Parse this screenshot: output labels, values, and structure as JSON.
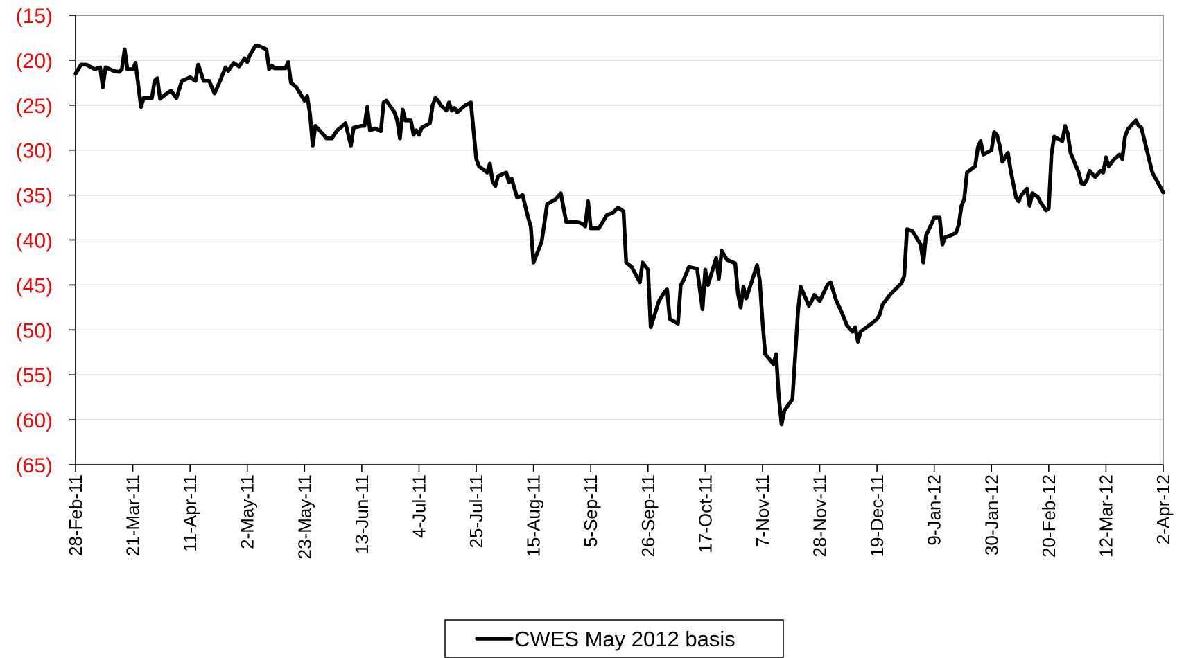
{
  "chart_data": {
    "type": "line",
    "title": "",
    "xlabel": "",
    "ylabel": "",
    "ylim": [
      -65,
      -15
    ],
    "y_ticks": [
      -15,
      -20,
      -25,
      -30,
      -35,
      -40,
      -45,
      -50,
      -55,
      -60,
      -65
    ],
    "y_tick_labels": [
      "(15)",
      "(20)",
      "(25)",
      "(30)",
      "(35)",
      "(40)",
      "(45)",
      "(50)",
      "(55)",
      "(60)",
      "(65)"
    ],
    "y_tick_color": "#ff0000",
    "x_tick_labels": [
      "28-Feb-11",
      "21-Mar-11",
      "11-Apr-11",
      "2-May-11",
      "23-May-11",
      "13-Jun-11",
      "4-Jul-11",
      "25-Jul-11",
      "15-Aug-11",
      "5-Sep-11",
      "26-Sep-11",
      "17-Oct-11",
      "7-Nov-11",
      "28-Nov-11",
      "19-Dec-11",
      "9-Jan-12",
      "30-Jan-12",
      "20-Feb-12",
      "12-Mar-12",
      "2-Apr-12"
    ],
    "grid": true,
    "legend_position": "bottom-center",
    "series": [
      {
        "name": "CWES May 2012 basis",
        "color": "#000000",
        "points": [
          [
            "28-Feb-11",
            -21.5
          ],
          [
            "2-Mar-11",
            -20.5
          ],
          [
            "4-Mar-11",
            -20.5
          ],
          [
            "7-Mar-11",
            -21.0
          ],
          [
            "9-Mar-11",
            -20.8
          ],
          [
            "10-Mar-11",
            -23.0
          ],
          [
            "11-Mar-11",
            -20.8
          ],
          [
            "14-Mar-11",
            -21.2
          ],
          [
            "16-Mar-11",
            -21.3
          ],
          [
            "17-Mar-11",
            -21.0
          ],
          [
            "18-Mar-11",
            -18.8
          ],
          [
            "19-Mar-11",
            -21.0
          ],
          [
            "21-Mar-11",
            -21.0
          ],
          [
            "22-Mar-11",
            -20.3
          ],
          [
            "24-Mar-11",
            -25.2
          ],
          [
            "25-Mar-11",
            -24.2
          ],
          [
            "28-Mar-11",
            -24.2
          ],
          [
            "29-Mar-11",
            -22.3
          ],
          [
            "30-Mar-11",
            -22.0
          ],
          [
            "31-Mar-11",
            -24.3
          ],
          [
            "2-Apr-11",
            -23.8
          ],
          [
            "4-Apr-11",
            -23.4
          ],
          [
            "6-Apr-11",
            -24.2
          ],
          [
            "8-Apr-11",
            -22.3
          ],
          [
            "11-Apr-11",
            -21.9
          ],
          [
            "13-Apr-11",
            -22.3
          ],
          [
            "14-Apr-11",
            -20.5
          ],
          [
            "16-Apr-11",
            -22.3
          ],
          [
            "18-Apr-11",
            -22.3
          ],
          [
            "20-Apr-11",
            -23.7
          ],
          [
            "22-Apr-11",
            -22.3
          ],
          [
            "24-Apr-11",
            -20.8
          ],
          [
            "25-Apr-11",
            -21.2
          ],
          [
            "27-Apr-11",
            -20.3
          ],
          [
            "29-Apr-11",
            -20.7
          ],
          [
            "1-May-11",
            -19.8
          ],
          [
            "2-May-11",
            -20.2
          ],
          [
            "3-May-11",
            -19.4
          ],
          [
            "5-May-11",
            -18.4
          ],
          [
            "6-May-11",
            -18.4
          ],
          [
            "9-May-11",
            -18.8
          ],
          [
            "10-May-11",
            -21.0
          ],
          [
            "11-May-11",
            -20.6
          ],
          [
            "12-May-11",
            -20.9
          ],
          [
            "16-May-11",
            -20.9
          ],
          [
            "17-May-11",
            -20.2
          ],
          [
            "18-May-11",
            -22.5
          ],
          [
            "20-May-11",
            -23.0
          ],
          [
            "23-May-11",
            -24.5
          ],
          [
            "24-May-11",
            -24.0
          ],
          [
            "25-May-11",
            -26.0
          ],
          [
            "26-May-11",
            -29.5
          ],
          [
            "27-May-11",
            -27.3
          ],
          [
            "30-May-11",
            -28.3
          ],
          [
            "31-May-11",
            -28.7
          ],
          [
            "2-Jun-11",
            -28.7
          ],
          [
            "4-Jun-11",
            -27.8
          ],
          [
            "6-Jun-11",
            -27.3
          ],
          [
            "7-Jun-11",
            -27.0
          ],
          [
            "9-Jun-11",
            -29.5
          ],
          [
            "10-Jun-11",
            -27.5
          ],
          [
            "13-Jun-11",
            -27.3
          ],
          [
            "14-Jun-11",
            -27.3
          ],
          [
            "15-Jun-11",
            -25.2
          ],
          [
            "16-Jun-11",
            -27.8
          ],
          [
            "18-Jun-11",
            -27.6
          ],
          [
            "20-Jun-11",
            -27.9
          ],
          [
            "21-Jun-11",
            -24.7
          ],
          [
            "22-Jun-11",
            -24.5
          ],
          [
            "25-Jun-11",
            -25.8
          ],
          [
            "26-Jun-11",
            -26.7
          ],
          [
            "27-Jun-11",
            -28.7
          ],
          [
            "28-Jun-11",
            -25.5
          ],
          [
            "29-Jun-11",
            -26.7
          ],
          [
            "1-Jul-11",
            -26.7
          ],
          [
            "2-Jul-11",
            -28.3
          ],
          [
            "3-Jul-11",
            -27.8
          ],
          [
            "4-Jul-11",
            -28.3
          ],
          [
            "5-Jul-11",
            -27.5
          ],
          [
            "8-Jul-11",
            -27.0
          ],
          [
            "9-Jul-11",
            -25.0
          ],
          [
            "10-Jul-11",
            -24.2
          ],
          [
            "11-Jul-11",
            -24.5
          ],
          [
            "12-Jul-11",
            -25.0
          ],
          [
            "14-Jul-11",
            -25.6
          ],
          [
            "15-Jul-11",
            -24.7
          ],
          [
            "16-Jul-11",
            -25.6
          ],
          [
            "17-Jul-11",
            -25.3
          ],
          [
            "18-Jul-11",
            -25.8
          ],
          [
            "21-Jul-11",
            -25.0
          ],
          [
            "23-Jul-11",
            -24.7
          ],
          [
            "24-Jul-11",
            -27.8
          ],
          [
            "25-Jul-11",
            -31.0
          ],
          [
            "26-Jul-11",
            -31.8
          ],
          [
            "29-Jul-11",
            -32.5
          ],
          [
            "30-Jul-11",
            -31.5
          ],
          [
            "31-Jul-11",
            -33.5
          ],
          [
            "1-Aug-11",
            -34.0
          ],
          [
            "2-Aug-11",
            -32.9
          ],
          [
            "5-Aug-11",
            -32.5
          ],
          [
            "6-Aug-11",
            -33.6
          ],
          [
            "7-Aug-11",
            -33.2
          ],
          [
            "9-Aug-11",
            -35.3
          ],
          [
            "11-Aug-11",
            -35.0
          ],
          [
            "13-Aug-11",
            -37.5
          ],
          [
            "14-Aug-11",
            -38.5
          ],
          [
            "15-Aug-11",
            -42.5
          ],
          [
            "18-Aug-11",
            -40.2
          ],
          [
            "20-Aug-11",
            -36.0
          ],
          [
            "23-Aug-11",
            -35.5
          ],
          [
            "25-Aug-11",
            -34.8
          ],
          [
            "27-Aug-11",
            -38.0
          ],
          [
            "31-Aug-11",
            -38.0
          ],
          [
            "2-Sep-11",
            -38.2
          ],
          [
            "3-Sep-11",
            -38.5
          ],
          [
            "4-Sep-11",
            -35.7
          ],
          [
            "5-Sep-11",
            -38.7
          ],
          [
            "8-Sep-11",
            -38.7
          ],
          [
            "11-Sep-11",
            -37.2
          ],
          [
            "13-Sep-11",
            -37.0
          ],
          [
            "15-Sep-11",
            -36.4
          ],
          [
            "17-Sep-11",
            -36.8
          ],
          [
            "18-Sep-11",
            -42.5
          ],
          [
            "20-Sep-11",
            -43.0
          ],
          [
            "23-Sep-11",
            -44.7
          ],
          [
            "24-Sep-11",
            -42.5
          ],
          [
            "26-Sep-11",
            -43.3
          ],
          [
            "27-Sep-11",
            -49.7
          ],
          [
            "30-Sep-11",
            -46.8
          ],
          [
            "2-Oct-11",
            -45.8
          ],
          [
            "3-Oct-11",
            -45.5
          ],
          [
            "4-Oct-11",
            -48.8
          ],
          [
            "7-Oct-11",
            -49.3
          ],
          [
            "8-Oct-11",
            -45.0
          ],
          [
            "9-Oct-11",
            -44.5
          ],
          [
            "11-Oct-11",
            -43.0
          ],
          [
            "14-Oct-11",
            -43.2
          ],
          [
            "16-Oct-11",
            -47.7
          ],
          [
            "17-Oct-11",
            -43.3
          ],
          [
            "18-Oct-11",
            -45.0
          ],
          [
            "21-Oct-11",
            -42.0
          ],
          [
            "22-Oct-11",
            -44.3
          ],
          [
            "23-Oct-11",
            -41.2
          ],
          [
            "25-Oct-11",
            -42.2
          ],
          [
            "28-Oct-11",
            -42.6
          ],
          [
            "29-Oct-11",
            -46.0
          ],
          [
            "30-Oct-11",
            -47.5
          ],
          [
            "31-Oct-11",
            -45.2
          ],
          [
            "1-Nov-11",
            -46.5
          ],
          [
            "5-Nov-11",
            -42.8
          ],
          [
            "6-Nov-11",
            -44.5
          ],
          [
            "7-Nov-11",
            -49.0
          ],
          [
            "8-Nov-11",
            -52.7
          ],
          [
            "11-Nov-11",
            -53.8
          ],
          [
            "12-Nov-11",
            -52.7
          ],
          [
            "13-Nov-11",
            -57.5
          ],
          [
            "14-Nov-11",
            -60.5
          ],
          [
            "15-Nov-11",
            -59.0
          ],
          [
            "18-Nov-11",
            -57.7
          ],
          [
            "20-Nov-11",
            -48.0
          ],
          [
            "21-Nov-11",
            -45.2
          ],
          [
            "24-Nov-11",
            -47.3
          ],
          [
            "25-Nov-11",
            -46.8
          ],
          [
            "26-Nov-11",
            -46.1
          ],
          [
            "28-Nov-11",
            -46.8
          ],
          [
            "30-Nov-11",
            -45.5
          ],
          [
            "1-Dec-11",
            -44.9
          ],
          [
            "2-Dec-11",
            -44.7
          ],
          [
            "4-Dec-11",
            -46.7
          ],
          [
            "6-Dec-11",
            -48.0
          ],
          [
            "8-Dec-11",
            -49.5
          ],
          [
            "10-Dec-11",
            -50.2
          ],
          [
            "11-Dec-11",
            -49.7
          ],
          [
            "12-Dec-11",
            -51.3
          ],
          [
            "13-Dec-11",
            -50.2
          ],
          [
            "17-Dec-11",
            -49.3
          ],
          [
            "19-Dec-11",
            -48.8
          ],
          [
            "20-Dec-11",
            -48.3
          ],
          [
            "21-Dec-11",
            -47.2
          ],
          [
            "24-Dec-11",
            -46.0
          ],
          [
            "28-Dec-11",
            -44.8
          ],
          [
            "29-Dec-11",
            -44.0
          ],
          [
            "30-Dec-11",
            -38.8
          ],
          [
            "1-Jan-12",
            -39.0
          ],
          [
            "4-Jan-12",
            -40.5
          ],
          [
            "5-Jan-12",
            -42.5
          ],
          [
            "6-Jan-12",
            -39.5
          ],
          [
            "8-Jan-12",
            -38.2
          ],
          [
            "9-Jan-12",
            -37.5
          ],
          [
            "11-Jan-12",
            -37.5
          ],
          [
            "12-Jan-12",
            -40.5
          ],
          [
            "13-Jan-12",
            -39.7
          ],
          [
            "15-Jan-12",
            -39.5
          ],
          [
            "17-Jan-12",
            -39.2
          ],
          [
            "18-Jan-12",
            -38.3
          ],
          [
            "19-Jan-12",
            -36.2
          ],
          [
            "20-Jan-12",
            -35.5
          ],
          [
            "21-Jan-12",
            -32.5
          ],
          [
            "24-Jan-12",
            -31.8
          ],
          [
            "25-Jan-12",
            -29.7
          ],
          [
            "26-Jan-12",
            -29.0
          ],
          [
            "27-Jan-12",
            -30.5
          ],
          [
            "30-Jan-12",
            -30.0
          ],
          [
            "31-Jan-12",
            -28.0
          ],
          [
            "1-Feb-12",
            -28.3
          ],
          [
            "2-Feb-12",
            -29.5
          ],
          [
            "3-Feb-12",
            -31.3
          ],
          [
            "5-Feb-12",
            -30.3
          ],
          [
            "6-Feb-12",
            -32.2
          ],
          [
            "8-Feb-12",
            -35.3
          ],
          [
            "9-Feb-12",
            -35.7
          ],
          [
            "10-Feb-12",
            -35.0
          ],
          [
            "12-Feb-12",
            -34.3
          ],
          [
            "13-Feb-12",
            -36.2
          ],
          [
            "14-Feb-12",
            -34.8
          ],
          [
            "16-Feb-12",
            -35.2
          ],
          [
            "17-Feb-12",
            -35.8
          ],
          [
            "19-Feb-12",
            -36.7
          ],
          [
            "20-Feb-12",
            -36.5
          ],
          [
            "21-Feb-12",
            -30.5
          ],
          [
            "22-Feb-12",
            -28.5
          ],
          [
            "25-Feb-12",
            -29.0
          ],
          [
            "26-Feb-12",
            -27.3
          ],
          [
            "27-Feb-12",
            -28.2
          ],
          [
            "28-Feb-12",
            -30.3
          ],
          [
            "2-Mar-12",
            -32.5
          ],
          [
            "3-Mar-12",
            -33.7
          ],
          [
            "4-Mar-12",
            -33.8
          ],
          [
            "5-Mar-12",
            -33.3
          ],
          [
            "6-Mar-12",
            -32.3
          ],
          [
            "8-Mar-12",
            -33.0
          ],
          [
            "10-Mar-12",
            -32.3
          ],
          [
            "11-Mar-12",
            -32.5
          ],
          [
            "12-Mar-12",
            -30.8
          ],
          [
            "13-Mar-12",
            -31.8
          ],
          [
            "15-Mar-12",
            -31.0
          ],
          [
            "17-Mar-12",
            -30.5
          ],
          [
            "18-Mar-12",
            -31.0
          ],
          [
            "19-Mar-12",
            -28.5
          ],
          [
            "20-Mar-12",
            -27.7
          ],
          [
            "22-Mar-12",
            -27.0
          ],
          [
            "23-Mar-12",
            -26.7
          ],
          [
            "24-Mar-12",
            -27.3
          ],
          [
            "25-Mar-12",
            -27.5
          ],
          [
            "27-Mar-12",
            -30.0
          ],
          [
            "29-Mar-12",
            -32.5
          ],
          [
            "2-Apr-12",
            -34.7
          ]
        ]
      }
    ]
  }
}
